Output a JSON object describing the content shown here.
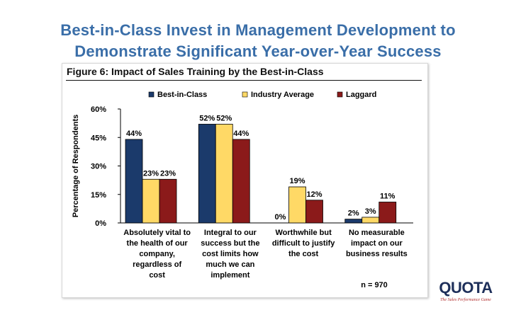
{
  "slide": {
    "title_line1": "Best-in-Class Invest in Management Development to",
    "title_line2": "Demonstrate Significant Year-over-Year Success"
  },
  "chart_data": {
    "type": "bar",
    "title": "Figure 6: Impact of Sales Training by the Best-in-Class",
    "ylabel": "Percentage of Respondents",
    "xlabel": "",
    "ylim": [
      0,
      60
    ],
    "yticks": [
      "0%",
      "15%",
      "30%",
      "45%",
      "60%"
    ],
    "ytick_values": [
      0,
      15,
      30,
      45,
      60
    ],
    "grid": false,
    "legend_position": "top",
    "categories": [
      [
        "Absolutely vital to",
        "the health of our",
        "company,",
        "regardless of",
        "cost"
      ],
      [
        "Integral to our",
        "success but the",
        "cost limits how",
        "much we can",
        "implement"
      ],
      [
        "Worthwhile but",
        "difficult to justify",
        "the cost"
      ],
      [
        "No measurable",
        "impact on our",
        "business results"
      ]
    ],
    "series": [
      {
        "name": "Best-in-Class",
        "color": "#1b3a6b",
        "values": [
          44,
          52,
          0,
          2
        ],
        "labels": [
          "44%",
          "52%",
          "0%",
          "2%"
        ]
      },
      {
        "name": "Industry Average",
        "color": "#ffd966",
        "values": [
          23,
          52,
          19,
          3
        ],
        "labels": [
          "23%",
          "52%",
          "19%",
          "3%"
        ]
      },
      {
        "name": "Laggard",
        "color": "#8b1a1a",
        "values": [
          23,
          44,
          12,
          11
        ],
        "labels": [
          "23%",
          "44%",
          "12%",
          "11%"
        ]
      }
    ],
    "annotation": "n = 970"
  },
  "logo": {
    "name": "QUOTA",
    "tagline": "The Sales Performance Game"
  }
}
